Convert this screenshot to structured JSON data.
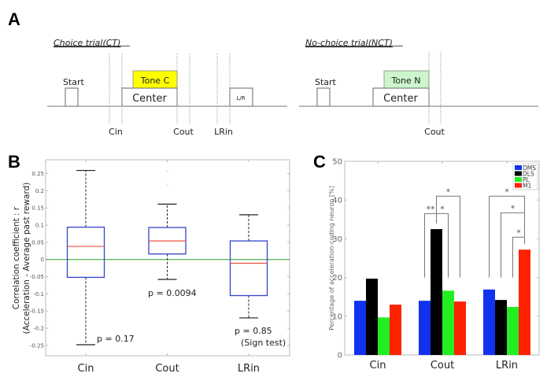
{
  "panels": {
    "a": {
      "letter": "A",
      "choice_trial": {
        "title": "Choice trial(CT)",
        "start_label": "Start",
        "center_label": "Center",
        "tone_label": "Tone C",
        "tone_color": "#ffff00",
        "lr_label": "L/R",
        "event_labels": [
          "Cin",
          "Cout",
          "LRin"
        ]
      },
      "no_choice_trial": {
        "title": "No-choice trial(NCT)",
        "start_label": "Start",
        "center_label": "Center",
        "tone_label": "Tone N",
        "tone_color": "#ccf5cc",
        "event_labels": [
          "Cout"
        ]
      }
    },
    "b": {
      "letter": "B"
    },
    "c": {
      "letter": "C"
    }
  },
  "chart_data": [
    {
      "id": "B",
      "type": "box",
      "title": "",
      "xlabel": "",
      "ylabel": "Correlation coefficient : r",
      "ylabel2": "(Acceleration - Average past reward)",
      "categories": [
        "Cin",
        "Cout",
        "LRin"
      ],
      "ylim": [
        -0.28,
        0.29
      ],
      "yticks": [
        0.25,
        0.2,
        0.15,
        0.1,
        0.05,
        0,
        -0.05,
        -0.1,
        -0.15,
        -0.2,
        -0.25
      ],
      "ytick_labels": [
        "0.25",
        "0.2",
        "0.15",
        "0.1",
        "0.05",
        "0",
        "-0.05",
        "-0.1",
        "-0.15",
        "-0.2",
        "-0.25"
      ],
      "reference_line": {
        "y": 0,
        "color": "#44aa44"
      },
      "box_color": "#3344cc",
      "median_color": "#ee5544",
      "boxes": [
        {
          "category": "Cin",
          "whisker_low": -0.248,
          "q1": -0.052,
          "median": 0.038,
          "q3": 0.094,
          "whisker_high": 0.259,
          "outliers": []
        },
        {
          "category": "Cout",
          "whisker_low": -0.058,
          "q1": 0.016,
          "median": 0.054,
          "q3": 0.093,
          "whisker_high": 0.161,
          "outliers": [
            0.257,
            0.219
          ]
        },
        {
          "category": "LRin",
          "whisker_low": -0.17,
          "q1": -0.105,
          "median": -0.011,
          "q3": 0.054,
          "whisker_high": 0.13,
          "outliers": []
        }
      ],
      "annotations": [
        {
          "category": "Cin",
          "text": "p = 0.17"
        },
        {
          "category": "Cout",
          "text": "p = 0.0094"
        },
        {
          "category": "LRin",
          "text": "p = 0.85"
        },
        {
          "category": "LRin",
          "text": "(Sign test)"
        }
      ]
    },
    {
      "id": "C",
      "type": "bar",
      "title": "",
      "xlabel": "",
      "ylabel": "Percentage of acceleration-coding neuron [%]",
      "categories": [
        "Cin",
        "Cout",
        "LRin"
      ],
      "ylim": [
        0,
        50
      ],
      "yticks": [
        0,
        10,
        20,
        30,
        40,
        50
      ],
      "ytick_labels": [
        "0",
        "10",
        "20",
        "30",
        "40",
        "50"
      ],
      "legend_position": "top-right",
      "series": [
        {
          "name": "DMS",
          "color": "#1133ee",
          "values": [
            14.0,
            14.0,
            16.9
          ]
        },
        {
          "name": "DLS",
          "color": "#000000",
          "values": [
            19.7,
            32.5,
            14.2
          ]
        },
        {
          "name": "PL",
          "color": "#22ee22",
          "values": [
            9.7,
            16.6,
            12.4
          ]
        },
        {
          "name": "M1",
          "color": "#ff2200",
          "values": [
            13.0,
            13.8,
            27.2
          ]
        }
      ],
      "significance": [
        {
          "category": "Cout",
          "from": "DMS",
          "to": "DLS",
          "label": "**",
          "level": 36.5
        },
        {
          "category": "Cout",
          "from": "DLS",
          "to": "PL",
          "label": "*",
          "level": 36.5
        },
        {
          "category": "Cout",
          "from": "DLS",
          "to": "M1",
          "label": "*",
          "level": 41
        },
        {
          "category": "LRin",
          "from": "DMS",
          "to": "M1",
          "label": "*",
          "level": 41
        },
        {
          "category": "LRin",
          "from": "DLS",
          "to": "M1",
          "label": "*",
          "level": 36.7
        },
        {
          "category": "LRin",
          "from": "PL",
          "to": "M1",
          "label": "*",
          "level": 30.4
        }
      ]
    }
  ]
}
